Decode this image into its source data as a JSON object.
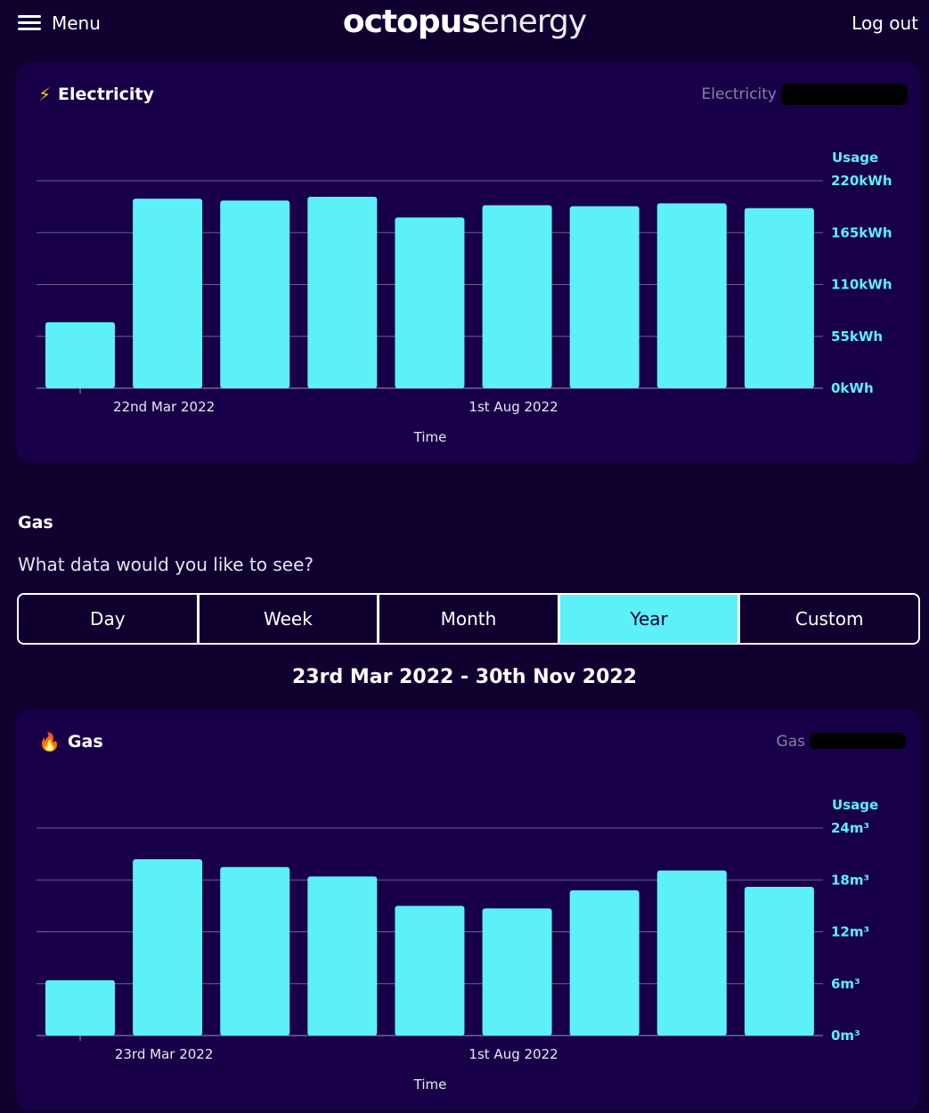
{
  "header": {
    "menu_label": "Menu",
    "logo_bold": "octopus",
    "logo_light": "energy",
    "logout_label": "Log out"
  },
  "electricity": {
    "title": "Electricity",
    "meter_label": "Electricity",
    "icon": "lightning-icon"
  },
  "gas_section": {
    "title": "Gas",
    "question": "What data would you like to see?",
    "tabs": [
      {
        "label": "Day",
        "active": false
      },
      {
        "label": "Week",
        "active": false
      },
      {
        "label": "Month",
        "active": false
      },
      {
        "label": "Year",
        "active": true
      },
      {
        "label": "Custom",
        "active": false
      }
    ],
    "date_range": "23rd Mar 2022 - 30th Nov 2022"
  },
  "gas": {
    "title": "Gas",
    "meter_label": "Gas",
    "icon": "flame-icon"
  },
  "colors": {
    "background": "#100030",
    "card": "#180048",
    "bar": "#5cf0f8",
    "accent": "#5cf0f8"
  },
  "chart_data": [
    {
      "type": "bar",
      "name": "electricity",
      "ylabel": "Usage",
      "xlabel": "Time",
      "unit": "kWh",
      "ylim": [
        0,
        220
      ],
      "yticks": [
        "0kWh",
        "55kWh",
        "110kWh",
        "165kWh",
        "220kWh"
      ],
      "xtick_labels": [
        {
          "label": "22nd Mar 2022",
          "index": 1
        },
        {
          "label": "1st Aug 2022",
          "index": 5
        }
      ],
      "values": [
        70,
        201,
        199,
        203,
        181,
        194,
        193,
        196,
        191
      ],
      "grid": true
    },
    {
      "type": "bar",
      "name": "gas",
      "ylabel": "Usage",
      "xlabel": "Time",
      "unit": "m³",
      "ylim": [
        0,
        24
      ],
      "yticks": [
        "0m³",
        "6m³",
        "12m³",
        "18m³",
        "24m³"
      ],
      "xtick_labels": [
        {
          "label": "23rd Mar 2022",
          "index": 1
        },
        {
          "label": "1st Aug 2022",
          "index": 5
        }
      ],
      "values": [
        6.4,
        20.4,
        19.5,
        18.4,
        15.0,
        14.7,
        16.8,
        19.1,
        17.2
      ],
      "grid": true
    }
  ]
}
